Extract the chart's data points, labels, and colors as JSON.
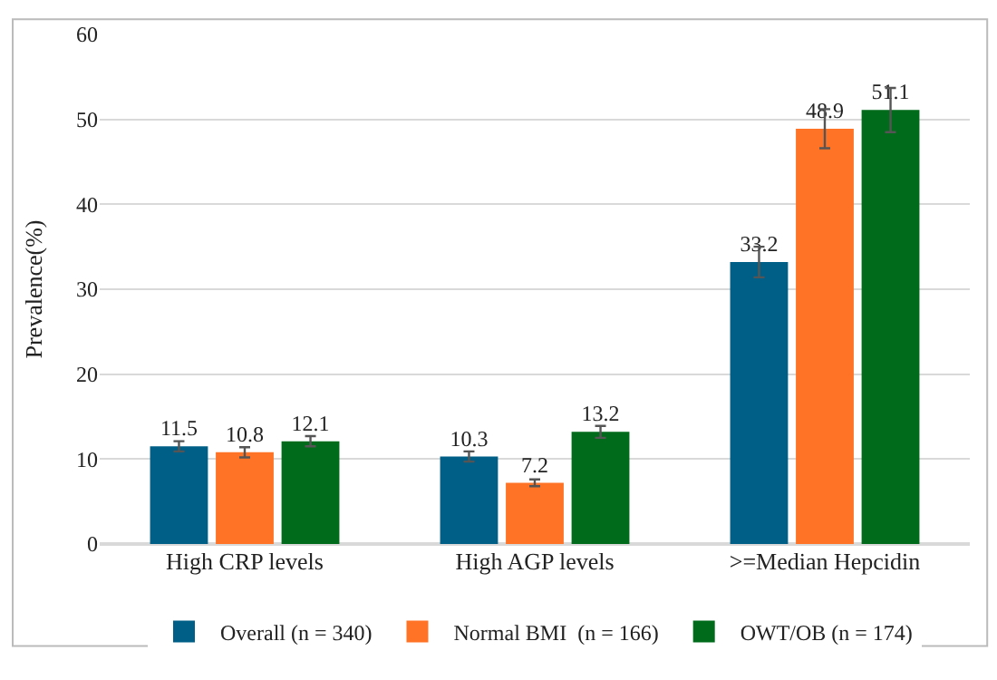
{
  "chart_data": {
    "type": "bar",
    "ylabel": "Prevalence(%)",
    "categories": [
      "High CRP levels",
      "High AGP levels",
      ">=Median Hepcidin"
    ],
    "series": [
      {
        "name": "Overall (n = 340)",
        "color": "#005f87",
        "values": [
          11.5,
          10.3,
          33.2
        ],
        "errors": [
          0.6,
          0.6,
          1.8
        ]
      },
      {
        "name": "Normal BMI  (n = 166)",
        "color": "#ff7326",
        "values": [
          10.8,
          7.2,
          48.9
        ],
        "errors": [
          0.6,
          0.4,
          2.3
        ]
      },
      {
        "name": "OWT/OB (n = 174)",
        "color": "#006b1a",
        "values": [
          12.1,
          13.2,
          51.1
        ],
        "errors": [
          0.6,
          0.7,
          2.6
        ]
      }
    ],
    "ylim": [
      0,
      60
    ],
    "yticks": [
      0,
      10,
      20,
      30,
      40,
      50,
      60
    ],
    "grid": "y",
    "legend": "bottom",
    "data_labels": true
  }
}
